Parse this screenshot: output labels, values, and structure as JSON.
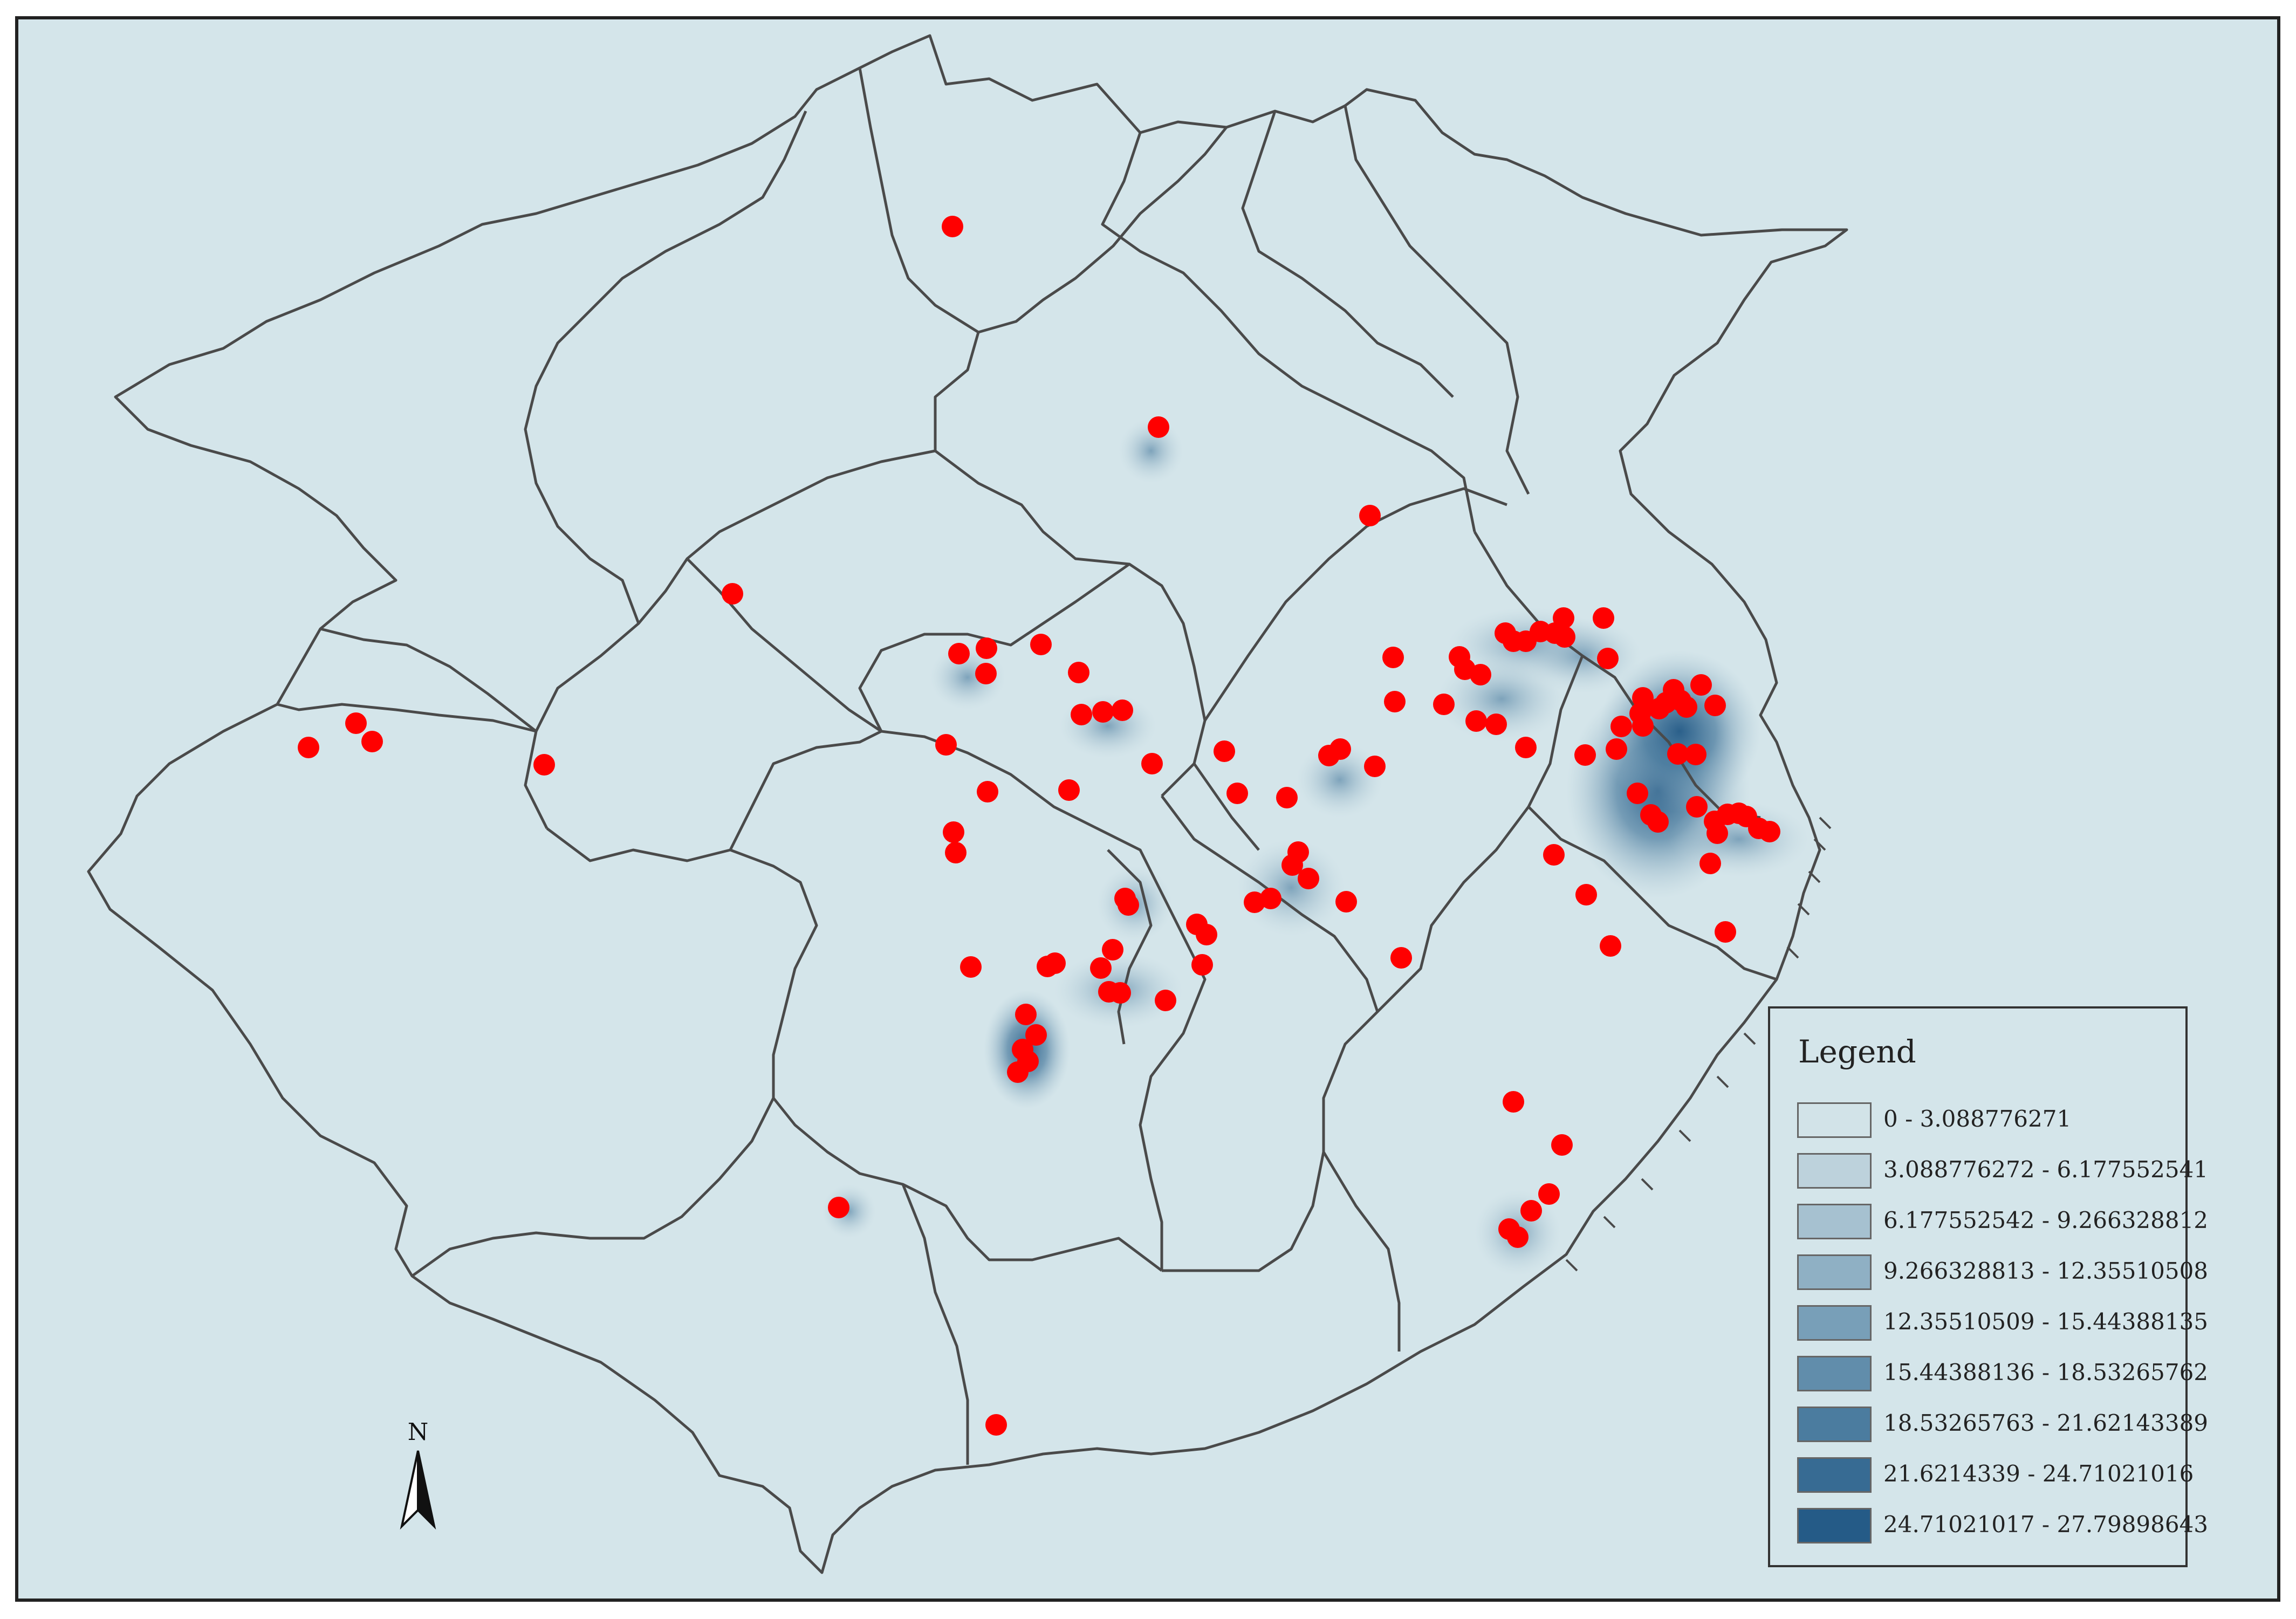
{
  "legend": {
    "title": "Legend",
    "classes": [
      {
        "label": "0 - 3.088776271",
        "color": "#d2e3e8"
      },
      {
        "label": "3.088776272 - 6.177552541",
        "color": "#bdd2dc"
      },
      {
        "label": "6.177552542 - 9.266328812",
        "color": "#a6c1d0"
      },
      {
        "label": "9.266328813 - 12.35510508",
        "color": "#8fb0c4"
      },
      {
        "label": "12.35510509 - 15.44388135",
        "color": "#789fb8"
      },
      {
        "label": "15.44388136 - 18.53265762",
        "color": "#618dab"
      },
      {
        "label": "18.53265763 - 21.62143389",
        "color": "#4b7c9f"
      },
      {
        "label": "21.6214339 - 24.71021016",
        "color": "#376b93"
      },
      {
        "label": "24.71021017 - 27.79898643",
        "color": "#255b87"
      }
    ]
  },
  "north_arrow": {
    "label": "N"
  },
  "colors": {
    "background": "#d4e5ea",
    "boundary": "#4a4a4a",
    "point": "#ff0000"
  },
  "icons": {
    "north": "north-arrow-icon"
  }
}
